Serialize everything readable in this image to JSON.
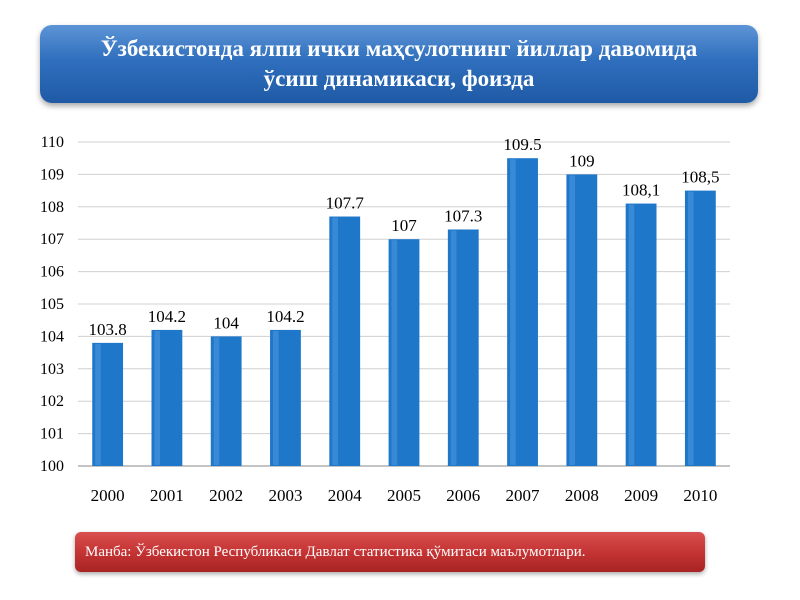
{
  "header": {
    "title_line1": "Ўзбекистонда ялпи ички маҳсулотнинг йиллар давомида",
    "title_line2": "ўсиш динамикаси, фоизда"
  },
  "footer": {
    "source": "Манба: Ўзбекистон Республикаси Давлат статистика қўмитаси маълумотлари."
  },
  "colors": {
    "bar": "#1f77c9",
    "gridline": "#d0d0d0",
    "axis": "#888888"
  },
  "chart_data": {
    "type": "bar",
    "categories": [
      "2000",
      "2001",
      "2002",
      "2003",
      "2004",
      "2005",
      "2006",
      "2007",
      "2008",
      "2009",
      "2010"
    ],
    "values": [
      103.8,
      104.2,
      104,
      104.2,
      107.7,
      107,
      107.3,
      109.5,
      109,
      108.1,
      108.5
    ],
    "data_labels": [
      "103.8",
      "104.2",
      "104",
      "104.2",
      "107.7",
      "107",
      "107.3",
      "109.5",
      "109",
      "108,1",
      "108,5"
    ],
    "yticks": [
      "100",
      "101",
      "102",
      "103",
      "104",
      "105",
      "106",
      "107",
      "108",
      "109",
      "110"
    ],
    "ylim": [
      100,
      110
    ],
    "grid": true,
    "legend": "none"
  }
}
